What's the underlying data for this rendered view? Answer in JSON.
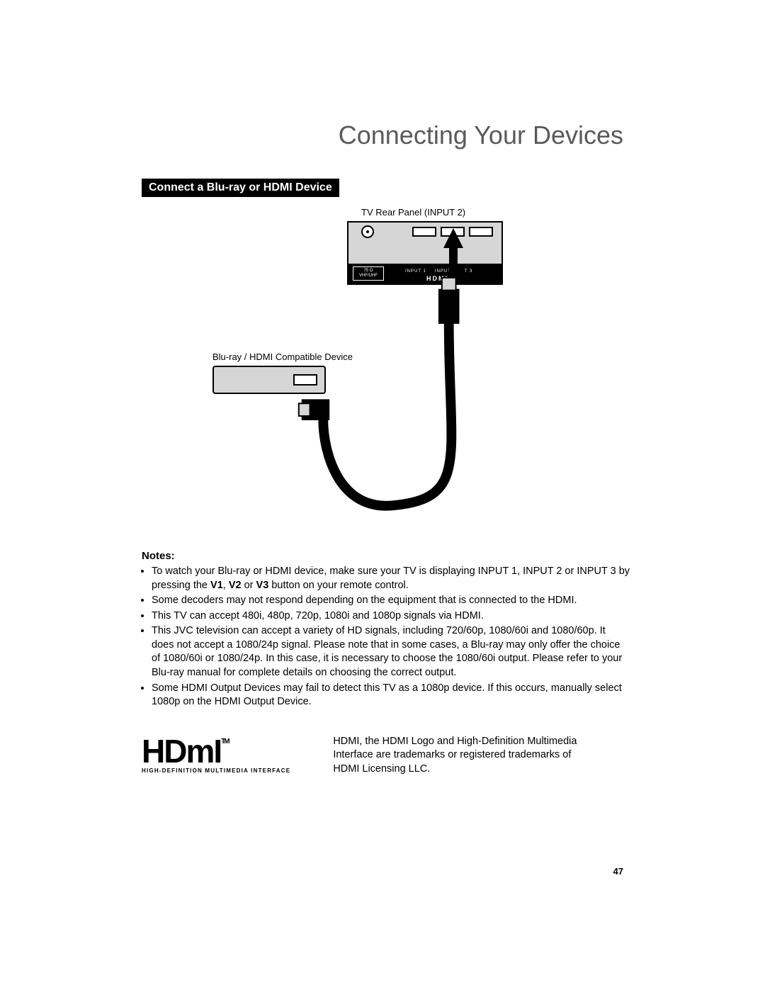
{
  "page": {
    "title": "Connecting Your Devices",
    "number": "47"
  },
  "section": {
    "header": "Connect a Blu-ray or HDMI Device"
  },
  "diagram": {
    "tv_panel_label": "TV Rear Panel (INPUT 2)",
    "device_label": "Blu-ray / HDMI Compatible Device",
    "port_box_line1": "75 Ω",
    "port_box_line2": "VHF/UHF",
    "input_label_1": "INPUT 1",
    "input_label_2": "INPUT 2",
    "input_label_3": "T 3",
    "hdmi_text": "HDMI",
    "colors": {
      "panel_bg": "#d6d6d6",
      "outline": "#000000"
    }
  },
  "notes": {
    "heading": "Notes:",
    "items": [
      "To watch your Blu-ray or HDMI device, make sure your TV is displaying INPUT 1, INPUT 2 or INPUT 3 by pressing the <b>V1</b>, <b>V2</b> or <b>V3</b> button on your remote control.",
      "Some decoders may not respond depending on the equipment that is connected to the HDMI.",
      "This TV can accept 480i, 480p, 720p, 1080i and 1080p signals via HDMI.",
      "This JVC television can accept a variety of HD signals, including 720/60p, 1080/60i and 1080/60p.  It does not accept a 1080/24p signal.  Please note that in some cases, a Blu-ray may only offer the choice of 1080/60i or 1080/24p.  In this case, it is necessary to choose the 1080/60i output.  Please refer to your Blu-ray manual for complete details on choosing the correct output.",
      "Some HDMI Output Devices may fail to detect this TV as a 1080p device.  If this occurs, manually select 1080p on the HDMI Output Device."
    ]
  },
  "logo": {
    "text": "HDmI",
    "tm": "TM",
    "subtitle": "HIGH-DEFINITION MULTIMEDIA INTERFACE"
  },
  "trademark": {
    "text": "HDMI, the HDMI Logo and High-Definition Multimedia Interface are trademarks or registered trademarks of HDMI Licensing LLC."
  }
}
